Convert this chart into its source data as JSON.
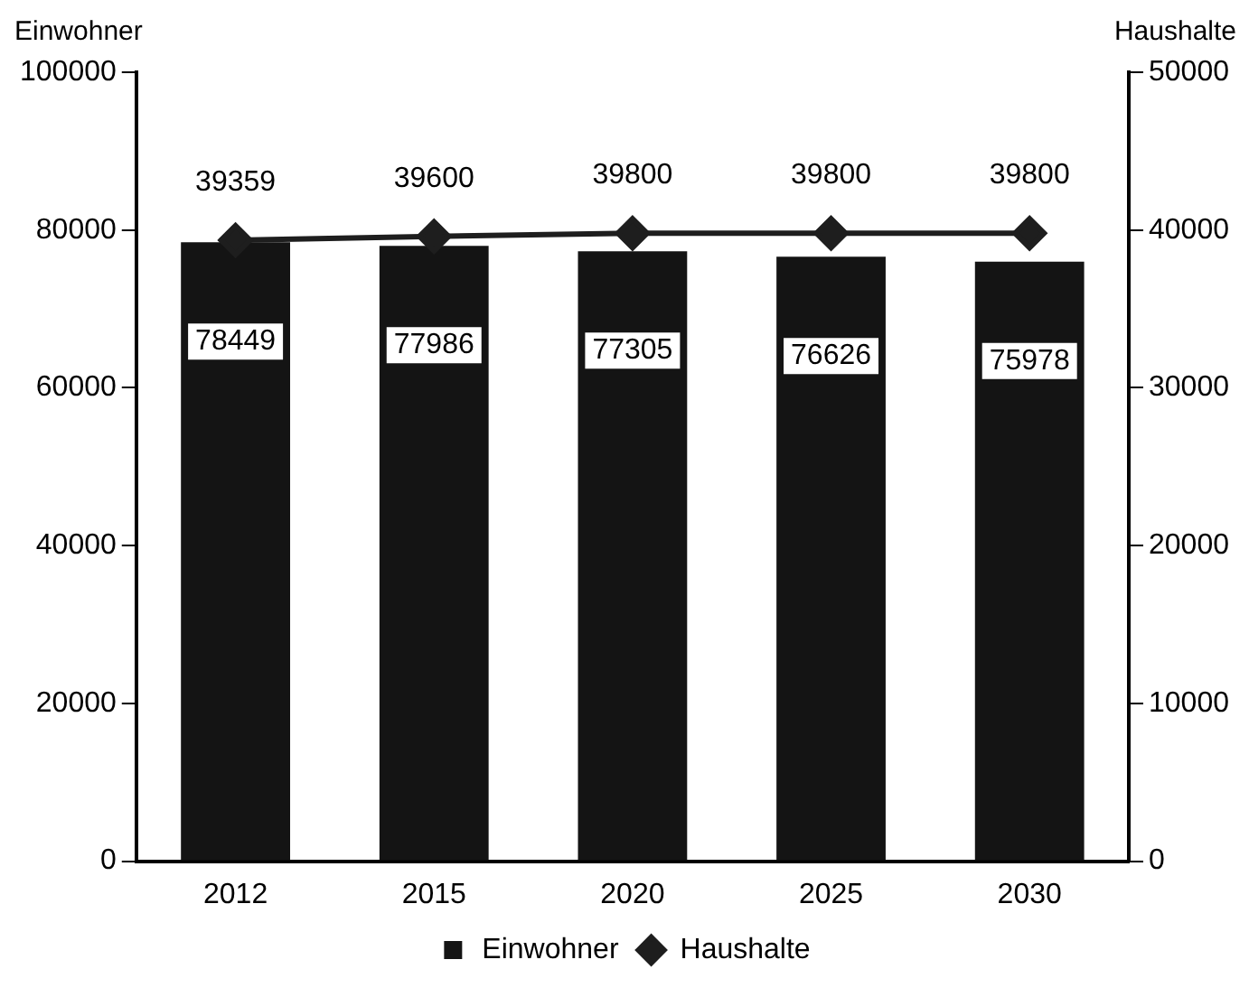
{
  "chart_data": {
    "type": "bar",
    "ylabel": "Einwohner",
    "y2label": "Haushalte",
    "categories": [
      "2012",
      "2015",
      "2020",
      "2025",
      "2030"
    ],
    "series": [
      {
        "name": "Einwohner",
        "color": "#141414",
        "values": [
          78449,
          77986,
          77305,
          76626,
          75978
        ]
      },
      {
        "name": "Haushalte",
        "type": "line",
        "axis": "y2",
        "color": "#1e1e1e",
        "marker": "diamond",
        "values": [
          39359,
          39600,
          39800,
          39800,
          39800
        ]
      }
    ],
    "ylim": [
      0,
      100000
    ],
    "yticks": [
      0,
      20000,
      40000,
      60000,
      80000,
      100000
    ],
    "y2lim": [
      0,
      50000
    ],
    "y2ticks": [
      0,
      10000,
      20000,
      30000,
      40000,
      50000
    ],
    "data_labels": true,
    "legend": "bottom",
    "grid": false
  }
}
